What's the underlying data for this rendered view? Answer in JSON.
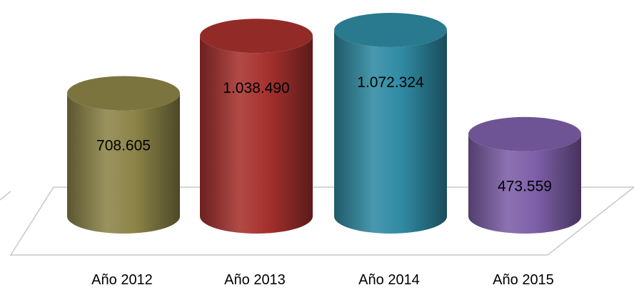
{
  "chart_data": {
    "type": "bar",
    "style": "3d-cylinder",
    "categories": [
      "Año 2012",
      "Año 2013",
      "Año 2014",
      "Año 2015"
    ],
    "values": [
      708605,
      1038490,
      1072324,
      473559
    ],
    "data_labels": [
      "708.605",
      "1.038.490",
      "1.072.324",
      "473.559"
    ],
    "colors": [
      "#8c8448",
      "#a6312e",
      "#2f8aa3",
      "#7d5fa8"
    ],
    "ylim": [
      0,
      1100000
    ],
    "grid": false,
    "legend": "none"
  }
}
